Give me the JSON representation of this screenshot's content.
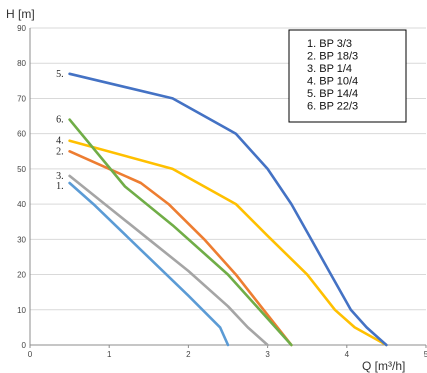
{
  "chart_data": {
    "type": "line",
    "ylabel": "H [m]",
    "xlabel": "Q [m³/h]",
    "xlim": [
      0,
      5
    ],
    "ylim": [
      0,
      90
    ],
    "x_ticks": [
      "0",
      "1",
      "2",
      "3",
      "4",
      "5"
    ],
    "y_ticks": [
      "0",
      "10",
      "20",
      "30",
      "40",
      "50",
      "60",
      "70",
      "80",
      "90"
    ],
    "grid": "horizontal",
    "legend_position": "top-right",
    "legend": [
      "1.  BP 3/3",
      "2.  BP 18/3",
      "3.  BP 1/4",
      "4.  BP 10/4",
      "5.  BP 14/4",
      "6.  BP 22/3"
    ],
    "series": [
      {
        "name": "BP 3/3",
        "tag": "1.",
        "color": "#5b9bd5",
        "points": [
          [
            0.5,
            46
          ],
          [
            0.8,
            40
          ],
          [
            1.4,
            27
          ],
          [
            2.0,
            14
          ],
          [
            2.4,
            5
          ],
          [
            2.5,
            0
          ]
        ]
      },
      {
        "name": "BP 18/3",
        "tag": "2.",
        "color": "#ed7d31",
        "points": [
          [
            0.5,
            55
          ],
          [
            1.0,
            50
          ],
          [
            1.4,
            46
          ],
          [
            1.75,
            40
          ],
          [
            2.2,
            30
          ],
          [
            2.6,
            20
          ],
          [
            2.95,
            10
          ],
          [
            3.3,
            0
          ]
        ]
      },
      {
        "name": "BP 1/4",
        "tag": "3.",
        "color": "#a5a5a5",
        "points": [
          [
            0.5,
            48
          ],
          [
            1.0,
            39
          ],
          [
            1.5,
            30
          ],
          [
            2.0,
            21
          ],
          [
            2.5,
            11
          ],
          [
            2.75,
            5
          ],
          [
            3.0,
            0
          ]
        ]
      },
      {
        "name": "BP 10/4",
        "tag": "4.",
        "color": "#ffc000",
        "points": [
          [
            0.5,
            58
          ],
          [
            1.8,
            50
          ],
          [
            2.6,
            40
          ],
          [
            3.0,
            31
          ],
          [
            3.5,
            20
          ],
          [
            3.85,
            10
          ],
          [
            4.1,
            5
          ],
          [
            4.5,
            0
          ]
        ]
      },
      {
        "name": "BP 14/4",
        "tag": "5.",
        "color": "#4472c4",
        "points": [
          [
            0.5,
            77
          ],
          [
            1.8,
            70
          ],
          [
            2.6,
            60
          ],
          [
            3.0,
            50
          ],
          [
            3.3,
            40
          ],
          [
            3.55,
            30
          ],
          [
            3.8,
            20
          ],
          [
            4.05,
            10
          ],
          [
            4.25,
            5
          ],
          [
            4.5,
            0
          ]
        ]
      },
      {
        "name": "BP 22/3",
        "tag": "6.",
        "color": "#70ad47",
        "points": [
          [
            0.5,
            64
          ],
          [
            1.2,
            45
          ],
          [
            1.8,
            34
          ],
          [
            2.5,
            20
          ],
          [
            2.9,
            10
          ],
          [
            3.3,
            0
          ]
        ]
      }
    ],
    "tag_label_order": [
      "5.",
      "6.",
      "4.",
      "2.",
      "3.",
      "1."
    ]
  }
}
